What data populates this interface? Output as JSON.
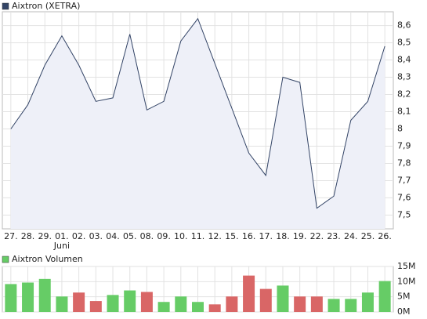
{
  "chart_data": [
    {
      "type": "line",
      "categories": [
        "27.",
        "28.",
        "29.",
        "01.",
        "02.",
        "03.",
        "04.",
        "05.",
        "08.",
        "09.",
        "10.",
        "11.",
        "12.",
        "15.",
        "16.",
        "17.",
        "18.",
        "19.",
        "22.",
        "23.",
        "24.",
        "25.",
        "26."
      ],
      "month_labels": [
        {
          "label": "Juni",
          "category": "01."
        }
      ],
      "series": [
        {
          "name": "Aixtron (XETRA)",
          "color": "#334466",
          "fill": "#eef0f8",
          "values": [
            8.0,
            8.14,
            8.37,
            8.54,
            8.37,
            8.16,
            8.18,
            8.55,
            8.11,
            8.16,
            8.51,
            8.64,
            8.38,
            8.12,
            7.86,
            7.73,
            8.3,
            8.27,
            7.54,
            7.61,
            8.05,
            8.16,
            8.48
          ]
        }
      ],
      "ylim": [
        7.42,
        8.68
      ],
      "yticks": [
        {
          "value": 7.5,
          "label": "7,5"
        },
        {
          "value": 7.6,
          "label": "7,6"
        },
        {
          "value": 7.7,
          "label": "7,7"
        },
        {
          "value": 7.8,
          "label": "7,8"
        },
        {
          "value": 7.9,
          "label": "7,9"
        },
        8,
        {
          "value": 8.1,
          "label": "8,1"
        },
        {
          "value": 8.2,
          "label": "8,2"
        },
        {
          "value": 8.3,
          "label": "8,3"
        },
        {
          "value": 8.4,
          "label": "8,4"
        },
        {
          "value": 8.5,
          "label": "8,5"
        },
        {
          "value": 8.6,
          "label": "8,6"
        }
      ],
      "grid": true
    },
    {
      "type": "bar",
      "series": [
        {
          "name": "Aixtron Volumen",
          "color": "#66cc66",
          "colors": [
            "#66cc66",
            "#66cc66",
            "#66cc66",
            "#66cc66",
            "#d96666",
            "#d96666",
            "#66cc66",
            "#66cc66",
            "#d96666",
            "#66cc66",
            "#66cc66",
            "#66cc66",
            "#d96666",
            "#d96666",
            "#d96666",
            "#d96666",
            "#66cc66",
            "#d96666",
            "#d96666",
            "#66cc66",
            "#66cc66",
            "#66cc66",
            "#66cc66"
          ],
          "values": [
            9200000,
            9700000,
            10900000,
            5100000,
            6400000,
            3600000,
            5600000,
            7100000,
            6600000,
            3300000,
            5100000,
            3300000,
            2500000,
            5100000,
            12000000,
            7600000,
            8700000,
            5100000,
            5100000,
            4300000,
            4300000,
            6400000,
            10200000
          ]
        }
      ],
      "ylim": [
        0,
        15000000
      ],
      "yticks": [
        {
          "value": 0,
          "label": "0M"
        },
        {
          "value": 5000000,
          "label": "5M"
        },
        {
          "value": 10000000,
          "label": "10M"
        },
        {
          "value": 15000000,
          "label": "15M"
        }
      ],
      "grid": true
    }
  ]
}
